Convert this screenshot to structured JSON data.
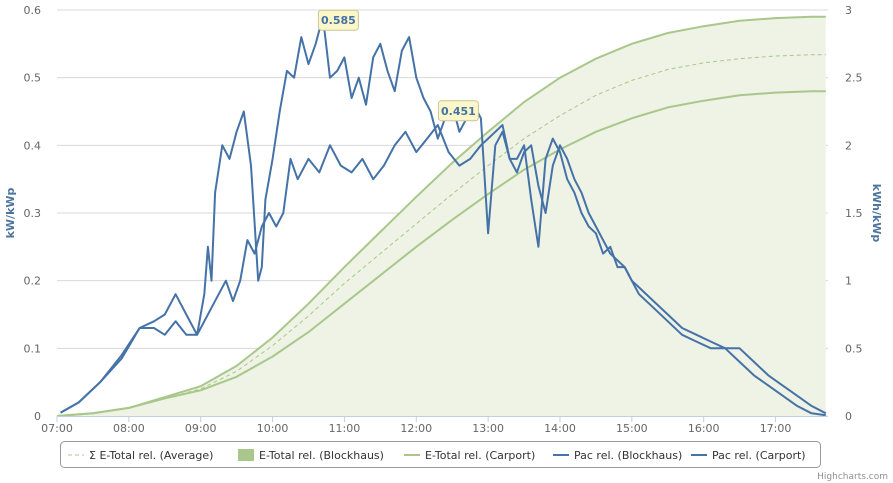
{
  "chart_data": {
    "type": "line",
    "title": "",
    "xlabel": "",
    "ylabel": "kW/kWp",
    "ylabel_right": "kWh/kWp",
    "x_ticks": [
      "07:00",
      "08:00",
      "09:00",
      "10:00",
      "11:00",
      "12:00",
      "13:00",
      "14:00",
      "15:00",
      "16:00",
      "17:00"
    ],
    "y_ticks_left": [
      "0",
      "0.1",
      "0.2",
      "0.3",
      "0.4",
      "0.5",
      "0.6"
    ],
    "y_ticks_right": [
      "0",
      "0.5",
      "1",
      "1.5",
      "2",
      "2.5",
      "3"
    ],
    "xlim": [
      7.0,
      17.73
    ],
    "ylim_left": [
      0,
      0.6
    ],
    "ylim_right": [
      0,
      3
    ],
    "grid": true,
    "legend_position": "bottom",
    "series": [
      {
        "name": "Σ E-Total rel. (Average)",
        "axis": "right",
        "style": "dashed",
        "color": "#a9c78a",
        "x": [
          7.0,
          7.5,
          8.0,
          8.5,
          9.0,
          9.5,
          10.0,
          10.5,
          11.0,
          11.5,
          12.0,
          12.5,
          13.0,
          13.5,
          14.0,
          14.5,
          15.0,
          15.5,
          16.0,
          16.5,
          17.0,
          17.5,
          17.7
        ],
        "y": [
          0,
          0.02,
          0.06,
          0.13,
          0.2,
          0.33,
          0.52,
          0.74,
          0.98,
          1.2,
          1.42,
          1.64,
          1.85,
          2.05,
          2.22,
          2.37,
          2.48,
          2.56,
          2.61,
          2.64,
          2.66,
          2.67,
          2.67
        ]
      },
      {
        "name": "E-Total rel. (Blockhaus)",
        "axis": "right",
        "style": "area",
        "color": "#a9c78a",
        "x": [
          7.0,
          7.5,
          8.0,
          8.5,
          9.0,
          9.5,
          10.0,
          10.5,
          11.0,
          11.5,
          12.0,
          12.5,
          13.0,
          13.5,
          14.0,
          14.5,
          15.0,
          15.5,
          16.0,
          16.5,
          17.0,
          17.5,
          17.7
        ],
        "y": [
          0,
          0.02,
          0.06,
          0.14,
          0.22,
          0.37,
          0.58,
          0.83,
          1.1,
          1.36,
          1.62,
          1.87,
          2.1,
          2.32,
          2.5,
          2.64,
          2.75,
          2.83,
          2.88,
          2.92,
          2.94,
          2.95,
          2.95
        ]
      },
      {
        "name": "E-Total rel. (Carport)",
        "axis": "right",
        "style": "line",
        "color": "#a9c78a",
        "x": [
          7.0,
          7.5,
          8.0,
          8.5,
          9.0,
          9.5,
          10.0,
          10.5,
          11.0,
          11.5,
          12.0,
          12.5,
          13.0,
          13.5,
          14.0,
          14.5,
          15.0,
          15.5,
          16.0,
          16.5,
          17.0,
          17.5,
          17.7
        ],
        "y": [
          0,
          0.02,
          0.06,
          0.13,
          0.19,
          0.29,
          0.44,
          0.62,
          0.83,
          1.04,
          1.25,
          1.45,
          1.64,
          1.82,
          1.97,
          2.1,
          2.2,
          2.28,
          2.33,
          2.37,
          2.39,
          2.4,
          2.4
        ]
      },
      {
        "name": "Pac rel. (Blockhaus)",
        "axis": "left",
        "style": "line",
        "color": "#4572a7",
        "x": [
          7.05,
          7.3,
          7.6,
          7.9,
          8.15,
          8.35,
          8.5,
          8.65,
          8.8,
          8.95,
          9.05,
          9.1,
          9.15,
          9.2,
          9.3,
          9.4,
          9.5,
          9.6,
          9.7,
          9.8,
          9.85,
          9.9,
          10.0,
          10.1,
          10.2,
          10.3,
          10.4,
          10.5,
          10.6,
          10.7,
          10.8,
          10.9,
          11.0,
          11.1,
          11.2,
          11.3,
          11.4,
          11.5,
          11.6,
          11.7,
          11.8,
          11.9,
          12.0,
          12.1,
          12.2,
          12.3,
          12.4,
          12.5,
          12.6,
          12.7,
          12.8,
          12.9,
          13.0,
          13.1,
          13.2,
          13.3,
          13.4,
          13.5,
          13.6,
          13.7,
          13.8,
          13.9,
          14.0,
          14.1,
          14.2,
          14.3,
          14.4,
          14.5,
          14.6,
          14.7,
          14.8,
          14.9,
          15.0,
          15.1,
          15.3,
          15.5,
          15.7,
          15.9,
          16.1,
          16.3,
          16.5,
          16.7,
          16.9,
          17.1,
          17.3,
          17.5,
          17.7
        ],
        "y": [
          0.005,
          0.02,
          0.05,
          0.09,
          0.13,
          0.14,
          0.15,
          0.18,
          0.15,
          0.12,
          0.18,
          0.25,
          0.2,
          0.33,
          0.4,
          0.38,
          0.42,
          0.45,
          0.37,
          0.2,
          0.22,
          0.32,
          0.38,
          0.45,
          0.51,
          0.5,
          0.56,
          0.52,
          0.55,
          0.59,
          0.5,
          0.51,
          0.53,
          0.47,
          0.5,
          0.46,
          0.53,
          0.55,
          0.51,
          0.48,
          0.54,
          0.56,
          0.5,
          0.47,
          0.45,
          0.41,
          0.44,
          0.46,
          0.42,
          0.44,
          0.46,
          0.44,
          0.27,
          0.4,
          0.42,
          0.38,
          0.38,
          0.4,
          0.32,
          0.25,
          0.38,
          0.41,
          0.39,
          0.35,
          0.33,
          0.3,
          0.28,
          0.27,
          0.24,
          0.25,
          0.22,
          0.22,
          0.2,
          0.19,
          0.17,
          0.15,
          0.13,
          0.12,
          0.11,
          0.1,
          0.1,
          0.08,
          0.06,
          0.045,
          0.03,
          0.015,
          0.004
        ]
      },
      {
        "name": "Pac rel. (Carport)",
        "axis": "left",
        "style": "line",
        "color": "#4572a7",
        "x": [
          7.05,
          7.3,
          7.6,
          7.9,
          8.15,
          8.35,
          8.5,
          8.65,
          8.8,
          8.95,
          9.05,
          9.15,
          9.25,
          9.35,
          9.45,
          9.55,
          9.65,
          9.75,
          9.85,
          9.95,
          10.05,
          10.15,
          10.25,
          10.35,
          10.5,
          10.65,
          10.8,
          10.95,
          11.1,
          11.25,
          11.4,
          11.55,
          11.7,
          11.85,
          12.0,
          12.15,
          12.3,
          12.45,
          12.6,
          12.75,
          12.9,
          13.0,
          13.1,
          13.2,
          13.3,
          13.4,
          13.5,
          13.6,
          13.7,
          13.8,
          13.9,
          14.0,
          14.1,
          14.2,
          14.3,
          14.4,
          14.5,
          14.6,
          14.7,
          14.8,
          14.9,
          15.0,
          15.1,
          15.3,
          15.5,
          15.7,
          15.9,
          16.1,
          16.3,
          16.5,
          16.7,
          16.9,
          17.1,
          17.3,
          17.5,
          17.7
        ],
        "y": [
          0.005,
          0.02,
          0.05,
          0.085,
          0.13,
          0.13,
          0.12,
          0.14,
          0.12,
          0.12,
          0.14,
          0.16,
          0.18,
          0.2,
          0.17,
          0.2,
          0.26,
          0.24,
          0.28,
          0.3,
          0.28,
          0.3,
          0.38,
          0.35,
          0.38,
          0.36,
          0.4,
          0.37,
          0.36,
          0.38,
          0.35,
          0.37,
          0.4,
          0.42,
          0.39,
          0.41,
          0.43,
          0.39,
          0.37,
          0.38,
          0.4,
          0.41,
          0.42,
          0.43,
          0.38,
          0.36,
          0.39,
          0.4,
          0.34,
          0.3,
          0.37,
          0.4,
          0.38,
          0.35,
          0.33,
          0.3,
          0.28,
          0.26,
          0.24,
          0.23,
          0.22,
          0.2,
          0.18,
          0.16,
          0.14,
          0.12,
          0.11,
          0.1,
          0.1,
          0.08,
          0.06,
          0.045,
          0.03,
          0.015,
          0.004,
          0.001
        ]
      }
    ],
    "tooltips": [
      {
        "label": "0.585",
        "series": "Pac rel. (Blockhaus)",
        "x": 10.68,
        "y": 0.585
      },
      {
        "label": "0.451",
        "series": "Pac rel. (Carport)",
        "x": 12.35,
        "y": 0.451
      }
    ]
  },
  "credit": "Highcharts.com",
  "colors": {
    "energy_line": "#a9c78a",
    "energy_fill": "#eef3e6",
    "power_line": "#4572a7",
    "grid": "#d8d8d8",
    "tooltip_bg": "#fbf7c8"
  }
}
